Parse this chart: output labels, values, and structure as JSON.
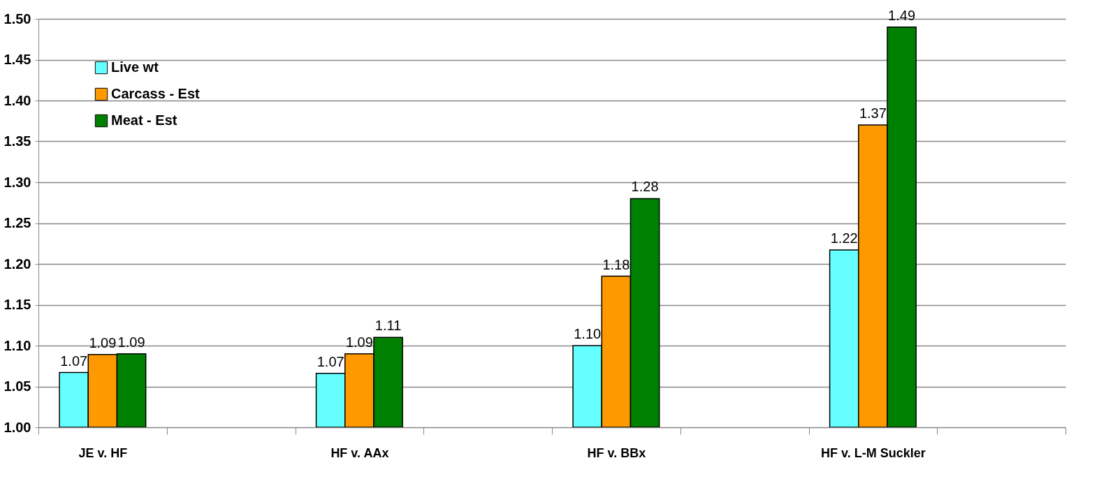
{
  "chart_data": {
    "type": "bar",
    "categories": [
      "JE v. HF",
      null,
      "HF v. AAx",
      null,
      "HF v. BBx",
      null,
      "HF v. L-M Suckler",
      null
    ],
    "series": [
      {
        "name": "Live wt",
        "color": "#66ffff",
        "values": [
          1.067,
          null,
          1.066,
          null,
          1.1,
          null,
          1.217,
          null
        ],
        "value_labels": [
          "1.07",
          null,
          "1.07",
          null,
          "1.10",
          null,
          "1.22",
          null
        ]
      },
      {
        "name": "Carcass - Est",
        "color": "#ff9900",
        "values": [
          1.089,
          null,
          1.09,
          null,
          1.185,
          null,
          1.37,
          null
        ],
        "value_labels": [
          "1.09",
          null,
          "1.09",
          null,
          "1.18",
          null,
          "1.37",
          null
        ]
      },
      {
        "name": "Meat - Est",
        "color": "#008000",
        "values": [
          1.09,
          null,
          1.11,
          null,
          1.28,
          null,
          1.49,
          null
        ],
        "value_labels": [
          "1.09",
          null,
          "1.11",
          null,
          "1.28",
          null,
          "1.49",
          null
        ]
      }
    ],
    "ylim": [
      1.0,
      1.5
    ],
    "yticks": [
      {
        "value": 1.0,
        "label": "1.00"
      },
      {
        "value": 1.05,
        "label": "1.05"
      },
      {
        "value": 1.1,
        "label": "1.10"
      },
      {
        "value": 1.15,
        "label": "1.15"
      },
      {
        "value": 1.2,
        "label": "1.20"
      },
      {
        "value": 1.25,
        "label": "1.25"
      },
      {
        "value": 1.3,
        "label": "1.30"
      },
      {
        "value": 1.35,
        "label": "1.35"
      },
      {
        "value": 1.4,
        "label": "1.40"
      },
      {
        "value": 1.45,
        "label": "1.45"
      },
      {
        "value": 1.5,
        "label": "1.50"
      }
    ],
    "grid": "y",
    "legend": "top left"
  }
}
